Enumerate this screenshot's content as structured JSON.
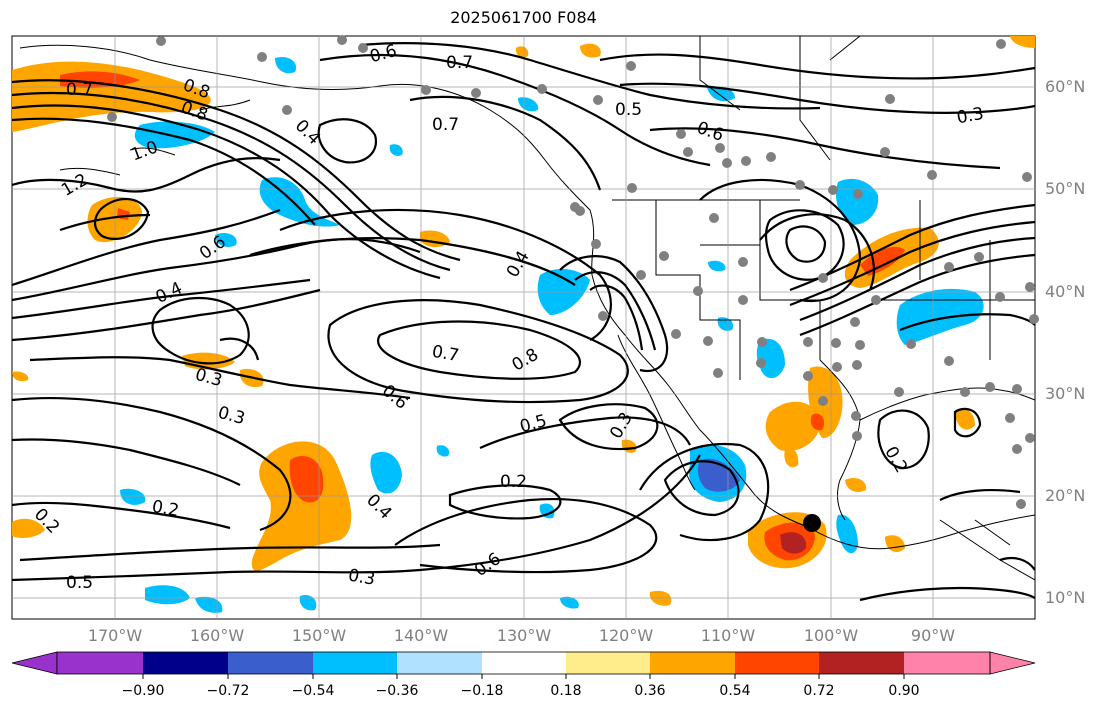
{
  "title": "2025061700 F084",
  "lat_labels": [
    "60°N",
    "50°N",
    "40°N",
    "30°N",
    "20°N",
    "10°N"
  ],
  "lon_labels": [
    "170°W",
    "160°W",
    "150°W",
    "140°W",
    "130°W",
    "120°W",
    "110°W",
    "100°W",
    "90°W"
  ],
  "contour_labels": [
    "0.7",
    "0.8",
    "1.0",
    "1.2",
    "0.6",
    "0.4",
    "0.3",
    "0.2",
    "0.5",
    "0.7",
    "0.8",
    "0.6",
    "0.4",
    "0.3",
    "0.2",
    "0.7",
    "0.6",
    "0.5",
    "0.4",
    "0.3",
    "0.2",
    "0.6",
    "0.7",
    "0.4",
    "0.5",
    "0.8",
    "0.3",
    "0.6",
    "0.2",
    "0.3"
  ],
  "colorbar": {
    "ticks": [
      "−0.90",
      "−0.72",
      "−0.54",
      "−0.36",
      "−0.18",
      "0.18",
      "0.36",
      "0.54",
      "0.72",
      "0.90"
    ],
    "colors": [
      "#9932cc",
      "#00008b",
      "#3a5fcd",
      "#00bfff",
      "#b0e2ff",
      "#ffffff",
      "#ffec8b",
      "#ffa500",
      "#ff4500",
      "#b22222",
      "#ff82ab"
    ]
  },
  "marker": "station-dot"
}
